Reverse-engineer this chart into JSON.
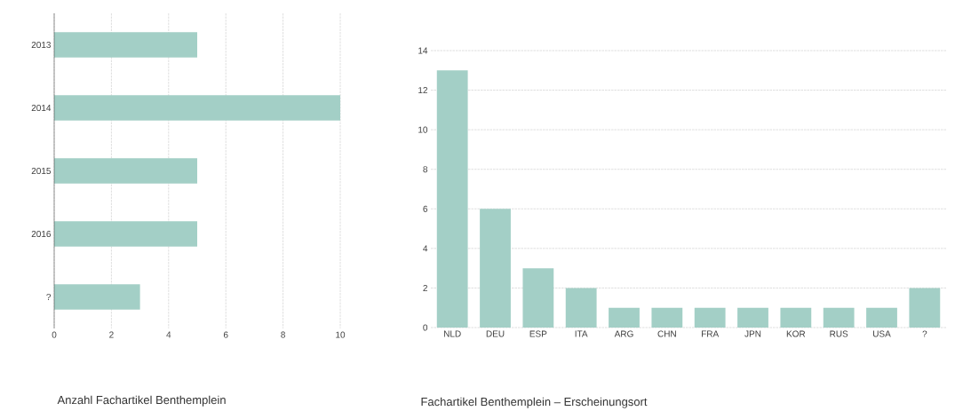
{
  "chart_data": [
    {
      "type": "bar",
      "orientation": "horizontal",
      "title": "Anzahl Fachartikel Benthemplein",
      "categories": [
        "2013",
        "2014",
        "2015",
        "2016",
        "?"
      ],
      "values": [
        5,
        10,
        5,
        5,
        3
      ],
      "color": "#a3cfc6",
      "xlim": [
        0,
        10
      ],
      "xticks": [
        0,
        2,
        4,
        6,
        8,
        10
      ],
      "grid": "x"
    },
    {
      "type": "bar",
      "title": "Fachartikel Benthemplein – Erscheinungsort",
      "categories": [
        "NLD",
        "DEU",
        "ESP",
        "ITA",
        "ARG",
        "CHN",
        "FRA",
        "JPN",
        "KOR",
        "RUS",
        "USA",
        "?"
      ],
      "values": [
        13,
        6,
        3,
        2,
        1,
        1,
        1,
        1,
        1,
        1,
        1,
        2
      ],
      "color": "#a3cfc6",
      "ylim": [
        0,
        14
      ],
      "yticks": [
        0,
        2,
        4,
        6,
        8,
        10,
        12,
        14
      ],
      "grid": "y"
    }
  ]
}
